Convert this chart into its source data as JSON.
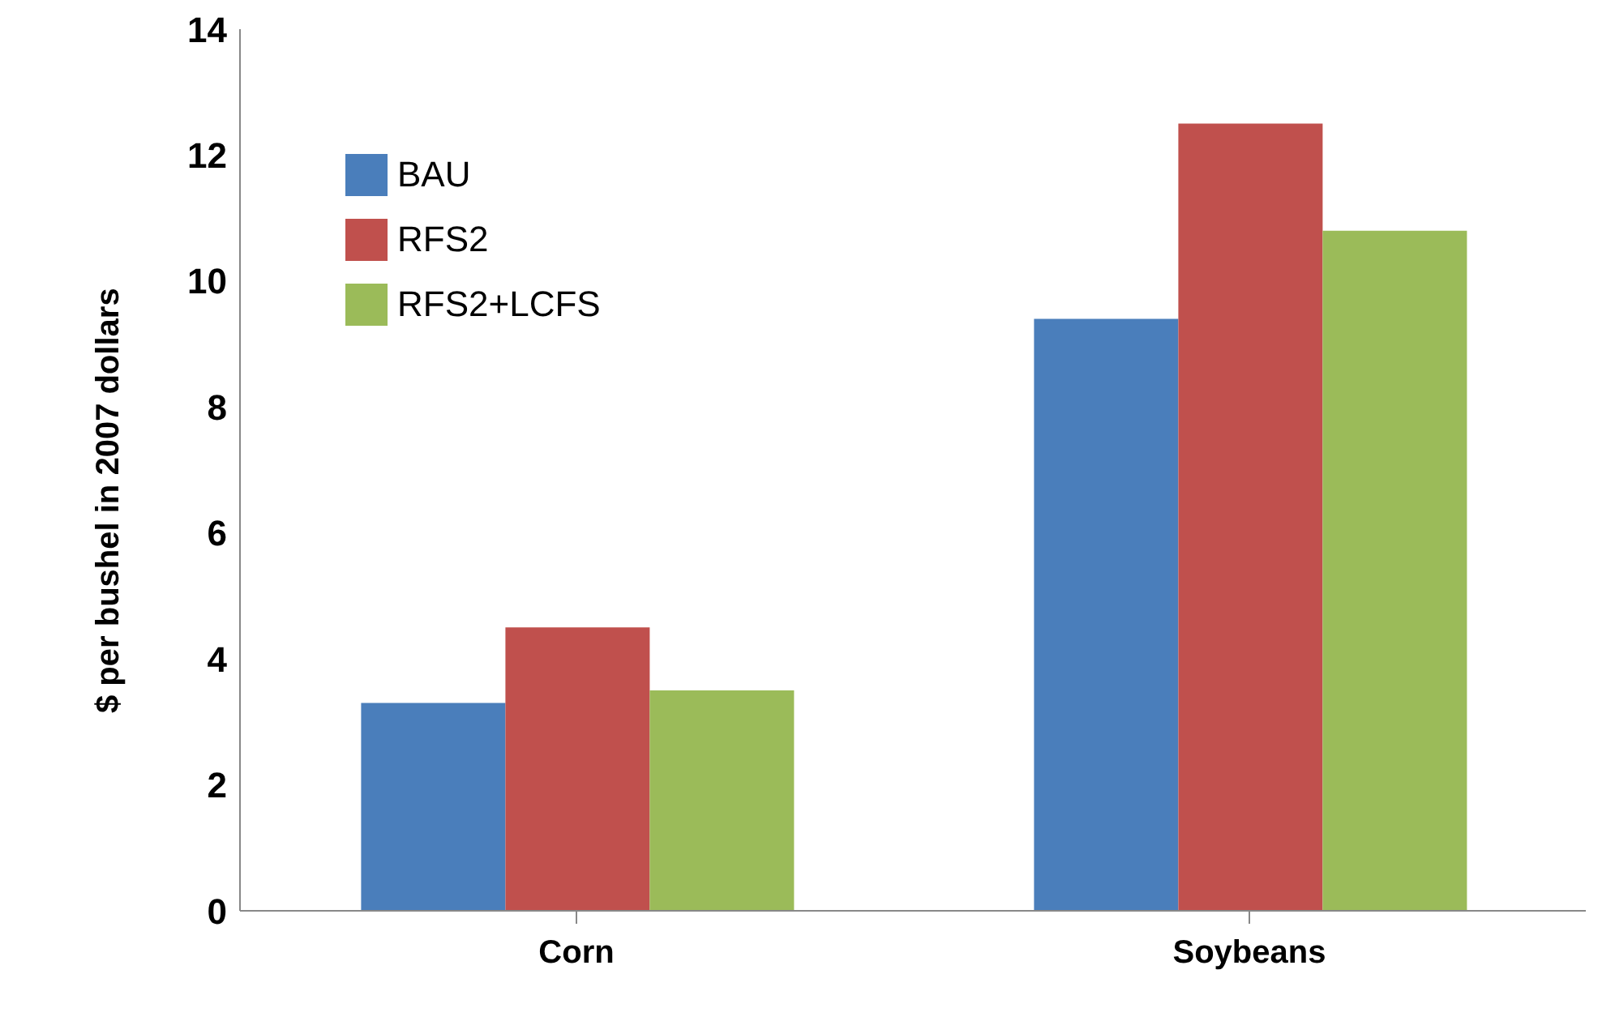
{
  "chart_data": {
    "type": "bar",
    "ylabel": "$ per bushel in 2007 dollars",
    "categories": [
      "Corn",
      "Soybeans"
    ],
    "series": [
      {
        "name": "BAU",
        "color": "#4a7ebb",
        "values": [
          3.3,
          9.4
        ]
      },
      {
        "name": "RFS2",
        "color": "#c0504d",
        "values": [
          4.5,
          12.5
        ]
      },
      {
        "name": "RFS2+LCFS",
        "color": "#9bbb59",
        "values": [
          3.5,
          10.8
        ]
      }
    ],
    "ylim": [
      0,
      14
    ],
    "yticks": [
      0,
      2,
      4,
      6,
      8,
      10,
      12,
      14
    ],
    "grid": false,
    "legend": "top left"
  }
}
